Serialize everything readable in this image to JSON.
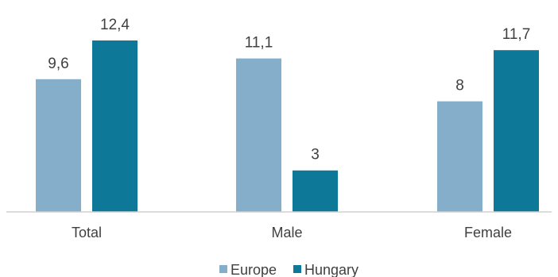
{
  "chart_data": {
    "type": "bar",
    "categories": [
      "Total",
      "Male",
      "Female"
    ],
    "series": [
      {
        "name": "Europe",
        "values": [
          9.6,
          11.1,
          8
        ],
        "labels": [
          "9,6",
          "11,1",
          "8"
        ],
        "color": "#84aec9"
      },
      {
        "name": "Hungary",
        "values": [
          12.4,
          3,
          11.7
        ],
        "labels": [
          "12,4",
          "3",
          "11,7"
        ],
        "color": "#0e7899"
      }
    ],
    "title": "",
    "xlabel": "",
    "ylabel": "",
    "ylim": [
      0,
      12.4
    ],
    "grid": false,
    "legend": "bottom"
  }
}
